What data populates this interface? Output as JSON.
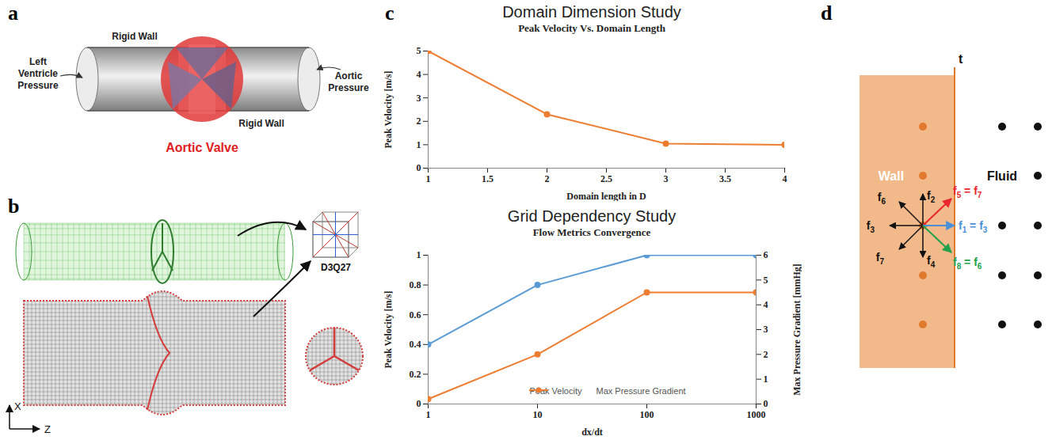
{
  "panel_labels": [
    "a",
    "b",
    "c",
    "d"
  ],
  "panel_a": {
    "walls": [
      "Rigid Wall",
      "Rigid Wall"
    ],
    "inlet": "Left Ventricle Pressure",
    "outlet": "Aortic Pressure",
    "valve": "Aortic Valve"
  },
  "panel_b": {
    "lattice": "D3Q27",
    "axes": [
      "X",
      "Z"
    ]
  },
  "panel_d": {
    "time": "t",
    "wall": "Wall",
    "fluid": "Fluid",
    "wall_vectors": [
      "f2",
      "f6",
      "f3",
      "f7",
      "f4"
    ],
    "streamed": [
      {
        "label": "f5 = f7",
        "color": "#e8262b"
      },
      {
        "label": "f1 = f3",
        "color": "#4a90d9"
      },
      {
        "label": "f8 = f6",
        "color": "#22a04b"
      }
    ]
  },
  "chart_data": [
    {
      "type": "line",
      "title": "Domain Dimension Study",
      "subtitle": "Peak Velocity Vs. Domain Length",
      "x": [
        1,
        2,
        3,
        4
      ],
      "values": [
        5,
        2.3,
        1.05,
        1.0
      ],
      "color": "#ED7D31",
      "marker": "circle",
      "xlabel": "Domain length in D",
      "ylabel": "Peak Velocity [m/s]",
      "xlim": [
        1,
        4
      ],
      "xticks": [
        1,
        1.5,
        2,
        2.5,
        3,
        3.5,
        4
      ],
      "ylim": [
        0,
        5
      ],
      "yticks": [
        0,
        1,
        2,
        3,
        4,
        5
      ],
      "grid": false
    },
    {
      "type": "line",
      "title": "Grid Dependency Study",
      "subtitle": "Flow Metrics Convergence",
      "x": [
        1,
        10,
        100,
        1000
      ],
      "log": "x",
      "series": [
        {
          "name": "Peak Velocity",
          "color": "#5B9BD5",
          "values": [
            0.4,
            0.8,
            1,
            1
          ],
          "marker": "circle"
        },
        {
          "name": "Max Pressure Gradient",
          "color": "#ED7D31",
          "values": [
            0.2,
            2,
            4.5,
            4.5
          ],
          "marker": "circle",
          "axis": "y2"
        }
      ],
      "xlabel": "dx/dt",
      "ylabel": "Peak Velocity [m/s]",
      "y2label": "Max Pressure Gradient [mmHg]",
      "xlim": [
        1,
        1000
      ],
      "xticks": [
        1,
        10,
        100,
        1000
      ],
      "ylim": [
        0,
        1
      ],
      "yticks": [
        0,
        0.2,
        0.4,
        0.6,
        0.8,
        1
      ],
      "y2lim": [
        0,
        6
      ],
      "y2ticks": [
        0,
        1,
        2,
        3,
        4,
        5,
        6
      ],
      "legend": "bottom",
      "grid": false
    }
  ]
}
